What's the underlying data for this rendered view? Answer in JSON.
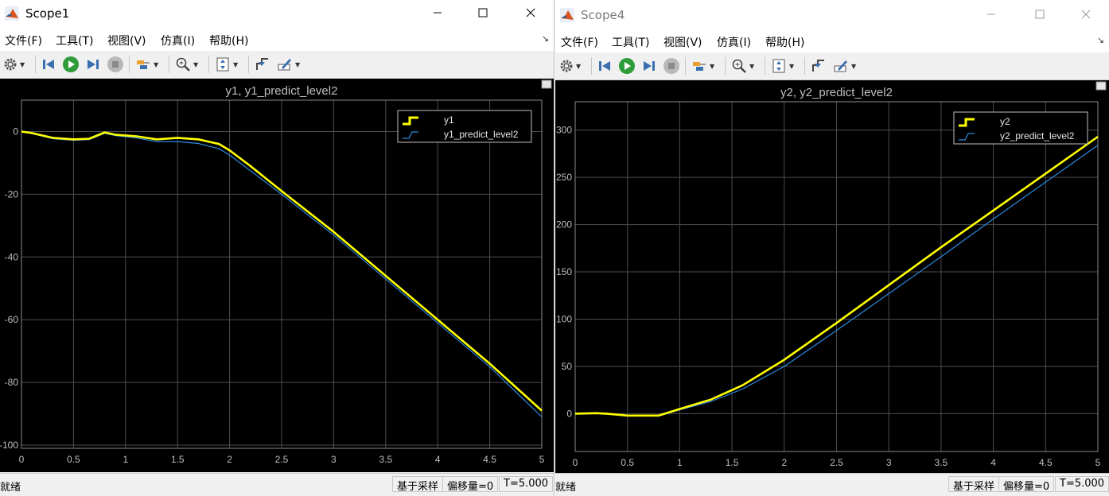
{
  "menu": [
    "文件(F)",
    "工具(T)",
    "视图(V)",
    "仿真(I)",
    "帮助(H)"
  ],
  "status": {
    "ready": "就绪",
    "sampling": "基于采样",
    "offset": "偏移量=0",
    "time": "T=5.000"
  },
  "colors": {
    "measured": "#ffff00",
    "predicted": "#2a8adf",
    "grid": "#4e4e4e",
    "axis_text": "#bfbfbf",
    "plot_bg": "#000000"
  },
  "toolbar_icons": [
    "gear-icon",
    "step-back-icon",
    "run-icon",
    "step-forward-icon",
    "stop-icon",
    "signal-select-icon",
    "zoom-icon",
    "scale-axes-icon",
    "trigger-icon",
    "highlight-icon"
  ],
  "windows": [
    {
      "title": "Scope1",
      "plot_title": "y1, y1_predict_level2",
      "chart_data": {
        "type": "line",
        "title": "y1, y1_predict_level2",
        "xlim": [
          0,
          5
        ],
        "ylim": [
          -101,
          10
        ],
        "xticks": [
          0,
          0.5,
          1,
          1.5,
          2,
          2.5,
          3,
          3.5,
          4,
          4.5,
          5
        ],
        "yticks": [
          -100,
          -80,
          -60,
          -40,
          -20,
          0
        ],
        "xtick_labels": [
          "0",
          "0.5",
          "1",
          "1.5",
          "2",
          "2.5",
          "3",
          "3.5",
          "4",
          "4.5",
          "5"
        ],
        "ytick_labels": [
          "-100",
          "-80",
          "-60",
          "-40",
          "-20",
          "0"
        ],
        "grid": true,
        "legend_position": "top-right",
        "series": [
          {
            "name": "y1",
            "x": [
              0,
              0.1,
              0.3,
              0.5,
              0.65,
              0.8,
              0.9,
              1.1,
              1.3,
              1.5,
              1.7,
              1.9,
              2.0,
              2.2,
              2.5,
              3.0,
              3.5,
              4.0,
              4.5,
              5.0
            ],
            "y": [
              0,
              -0.5,
              -2,
              -2.5,
              -2.3,
              -0.3,
              -1,
              -1.5,
              -2.5,
              -2,
              -2.5,
              -4,
              -6,
              -11,
              -19,
              -32,
              -46,
              -60,
              -74,
              -89
            ]
          },
          {
            "name": "y1_predict_level2",
            "x": [
              0,
              0.1,
              0.3,
              0.5,
              0.65,
              0.8,
              0.9,
              1.1,
              1.3,
              1.5,
              1.7,
              1.9,
              2.0,
              2.2,
              2.5,
              3.0,
              3.5,
              4.0,
              4.5,
              5.0
            ],
            "y": [
              0,
              -0.7,
              -2.3,
              -2.8,
              -2.6,
              -0.6,
              -1.3,
              -2,
              -3.2,
              -3.2,
              -3.8,
              -5.5,
              -7.5,
              -12.5,
              -20,
              -33,
              -47,
              -61,
              -75,
              -91
            ]
          }
        ]
      }
    },
    {
      "title": "Scope4",
      "plot_title": "y2, y2_predict_level2",
      "chart_data": {
        "type": "line",
        "title": "y2, y2_predict_level2",
        "xlim": [
          0,
          5
        ],
        "ylim": [
          -40,
          330
        ],
        "xticks": [
          0,
          0.5,
          1,
          1.5,
          2,
          2.5,
          3,
          3.5,
          4,
          4.5,
          5
        ],
        "yticks": [
          0,
          50,
          100,
          150,
          200,
          250,
          300
        ],
        "xtick_labels": [
          "0",
          "0.5",
          "1",
          "1.5",
          "2",
          "2.5",
          "3",
          "3.5",
          "4",
          "4.5",
          "5"
        ],
        "ytick_labels": [
          "0",
          "50",
          "100",
          "150",
          "200",
          "250",
          "300"
        ],
        "grid": true,
        "legend_position": "top-right",
        "series": [
          {
            "name": "y2",
            "x": [
              0,
              0.2,
              0.3,
              0.5,
              0.8,
              1.0,
              1.3,
              1.6,
              2.0,
              2.5,
              3.0,
              3.5,
              4.0,
              4.5,
              5.0
            ],
            "y": [
              0,
              0.5,
              0,
              -2,
              -2,
              5,
              15,
              30,
              57,
              96,
              136,
              176,
              215,
              254,
              293
            ]
          },
          {
            "name": "y2_predict_level2",
            "x": [
              0,
              0.2,
              0.3,
              0.5,
              0.8,
              1.0,
              1.3,
              1.6,
              2.0,
              2.5,
              3.0,
              3.5,
              4.0,
              4.5,
              5.0
            ],
            "y": [
              0,
              0.3,
              -0.3,
              -2.5,
              -2.5,
              4,
              13,
              26,
              50,
              88,
              127,
              166,
              206,
              245,
              284
            ]
          }
        ]
      }
    }
  ]
}
